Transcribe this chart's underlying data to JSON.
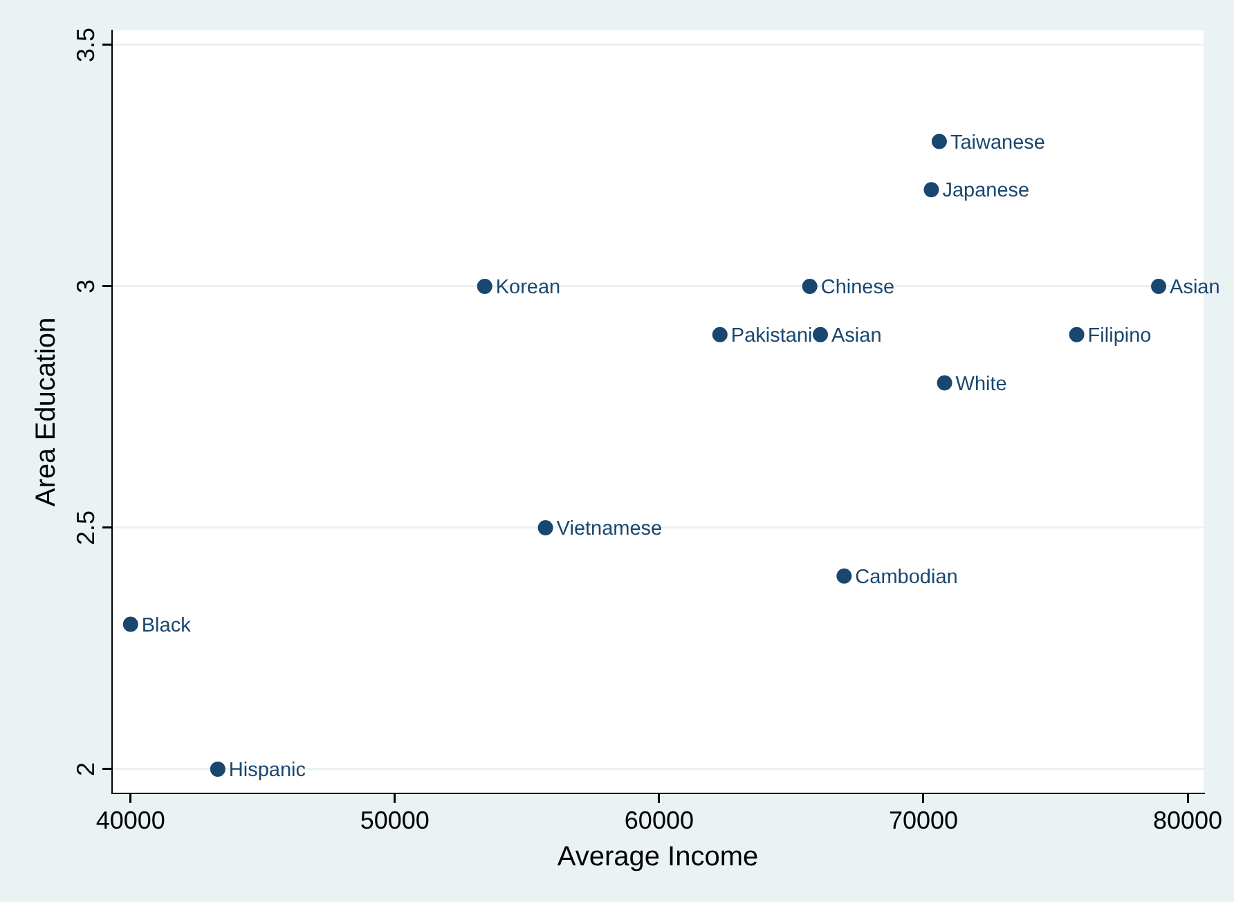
{
  "chart_data": {
    "type": "scatter",
    "xlabel": "Average Income",
    "ylabel": "Area Education",
    "x": [
      40000,
      43300,
      53400,
      55700,
      62300,
      66100,
      65700,
      67000,
      70300,
      70600,
      70800,
      75800,
      78900
    ],
    "series": [
      {
        "color": "#1a476f",
        "values": [
          2.3,
          2.0,
          3.0,
          2.5,
          2.9,
          2.9,
          3.0,
          2.4,
          3.2,
          3.3,
          2.8,
          2.9,
          3.0
        ]
      }
    ],
    "xlim": [
      39300,
      80600
    ],
    "ylim": [
      1.95,
      3.53
    ],
    "xticks": [
      40000,
      50000,
      60000,
      70000,
      80000
    ],
    "yticks": [
      2,
      2.5,
      3,
      3.5
    ],
    "grid": "y",
    "legend": false,
    "marker": "circle",
    "annotations": [
      {
        "text": "Black",
        "x": 40000,
        "y": 2.3
      },
      {
        "text": "Hispanic",
        "x": 43300,
        "y": 2.0
      },
      {
        "text": "Korean",
        "x": 53400,
        "y": 3.0
      },
      {
        "text": "Vietnamese",
        "x": 55700,
        "y": 2.5
      },
      {
        "text": "Pakistani",
        "x": 62300,
        "y": 2.9
      },
      {
        "text": "Asian",
        "x": 66100,
        "y": 2.9
      },
      {
        "text": "Chinese",
        "x": 65700,
        "y": 3.0
      },
      {
        "text": "Cambodian",
        "x": 67000,
        "y": 2.4
      },
      {
        "text": "Japanese",
        "x": 70300,
        "y": 3.2
      },
      {
        "text": "Taiwanese",
        "x": 70600,
        "y": 3.3
      },
      {
        "text": "White",
        "x": 70800,
        "y": 2.8
      },
      {
        "text": "Filipino",
        "x": 75800,
        "y": 2.9
      },
      {
        "text": "Asian",
        "x": 78900,
        "y": 3.0
      }
    ]
  }
}
